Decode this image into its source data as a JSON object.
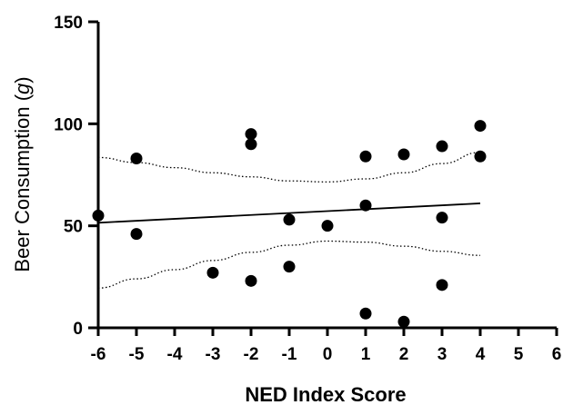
{
  "chart_data": {
    "type": "scatter",
    "title": "",
    "xlabel": "NED Index Score",
    "ylabel_prefix": "Beer Consumption (",
    "ylabel_italic": "g",
    "ylabel_suffix": ")",
    "xlim": [
      -6,
      6
    ],
    "ylim": [
      0,
      150
    ],
    "xticks": [
      "-6",
      "-5",
      "-4",
      "-3",
      "-2",
      "-1",
      "0",
      "1",
      "2",
      "3",
      "4",
      "5",
      "6"
    ],
    "yticks": [
      "0",
      "50",
      "100",
      "150"
    ],
    "grid": false,
    "legend": "none",
    "marker_color": "#000000",
    "points": [
      {
        "x": -6,
        "y": 55
      },
      {
        "x": -5,
        "y": 83
      },
      {
        "x": -5,
        "y": 46
      },
      {
        "x": -3,
        "y": 27
      },
      {
        "x": -2,
        "y": 95
      },
      {
        "x": -2,
        "y": 90
      },
      {
        "x": -2,
        "y": 23
      },
      {
        "x": -1,
        "y": 53
      },
      {
        "x": -1,
        "y": 30
      },
      {
        "x": 0,
        "y": 50
      },
      {
        "x": 1,
        "y": 84
      },
      {
        "x": 1,
        "y": 60
      },
      {
        "x": 1,
        "y": 7
      },
      {
        "x": 2,
        "y": 85
      },
      {
        "x": 2,
        "y": 3
      },
      {
        "x": 3,
        "y": 89
      },
      {
        "x": 3,
        "y": 54
      },
      {
        "x": 3,
        "y": 21
      },
      {
        "x": 4,
        "y": 99
      },
      {
        "x": 4,
        "y": 84
      }
    ],
    "regression_line": {
      "x": [
        -6,
        4
      ],
      "y": [
        51.5,
        61
      ]
    },
    "confidence_band": {
      "upper": {
        "x": [
          -6,
          -5,
          -4,
          -3,
          -2,
          -1,
          0,
          1,
          2,
          3,
          4
        ],
        "y": [
          83.5,
          81,
          78.5,
          76,
          74,
          72,
          71.5,
          73,
          76,
          80.5,
          86
        ]
      },
      "lower": {
        "x": [
          -6,
          -5,
          -4,
          -3,
          -2,
          -1,
          0,
          1,
          2,
          3,
          4
        ],
        "y": [
          19.5,
          24,
          28.5,
          33,
          37,
          40.5,
          42.5,
          42,
          40,
          37.5,
          35.5
        ]
      }
    }
  }
}
